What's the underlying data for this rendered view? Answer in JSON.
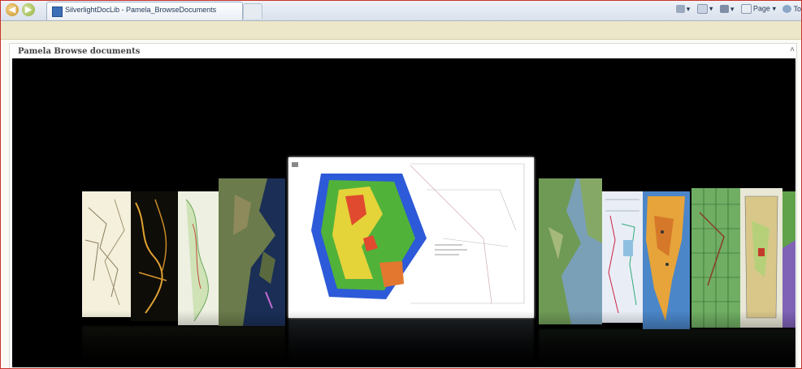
{
  "browser": {
    "tab_title": "SilverlightDocLib - Pamela_BrowseDocuments",
    "commands": [
      "Page ▾",
      "To"
    ]
  },
  "panel": {
    "title": "Pamela Browse documents"
  },
  "carousel": {
    "items": [
      "map-thumb-sketch",
      "map-thumb-night",
      "map-thumb-contour",
      "map-thumb-satellite",
      "map-thumb-heatmap-selected",
      "map-thumb-terrain",
      "map-thumb-sections",
      "map-thumb-continent",
      "map-thumb-grid",
      "map-thumb-relief",
      "map-thumb-edge"
    ],
    "selected_index": 4
  }
}
